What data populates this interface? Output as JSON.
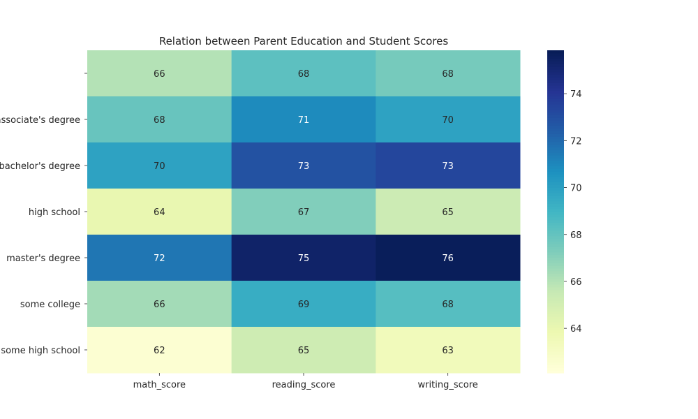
{
  "chart_data": {
    "type": "heatmap",
    "title": "Relation between Parent Education and Student Scores",
    "xlabel": "",
    "ylabel": "",
    "x_categories": [
      "math_score",
      "reading_score",
      "writing_score"
    ],
    "y_categories": [
      "",
      "associate's degree",
      "bachelor's degree",
      "high school",
      "master's degree",
      "some college",
      "some high school"
    ],
    "values": [
      [
        66,
        68,
        68
      ],
      [
        68,
        71,
        70
      ],
      [
        70,
        73,
        73
      ],
      [
        64,
        67,
        65
      ],
      [
        72,
        75,
        76
      ],
      [
        66,
        69,
        68
      ],
      [
        62,
        65,
        63
      ]
    ],
    "raw_values": [
      [
        66.0,
        68.2,
        67.5
      ],
      [
        67.9,
        70.9,
        69.9
      ],
      [
        69.9,
        72.9,
        73.4
      ],
      [
        64.0,
        67.2,
        65.3
      ],
      [
        71.6,
        75.4,
        75.8
      ],
      [
        66.4,
        69.4,
        68.4
      ],
      [
        62.4,
        65.2,
        63.4
      ]
    ],
    "colormap": "YlGnBu",
    "colorbar": {
      "min": 62.1,
      "max": 75.85,
      "ticks": [
        64,
        66,
        68,
        70,
        72,
        74
      ]
    },
    "annotations": true,
    "grid": false
  }
}
